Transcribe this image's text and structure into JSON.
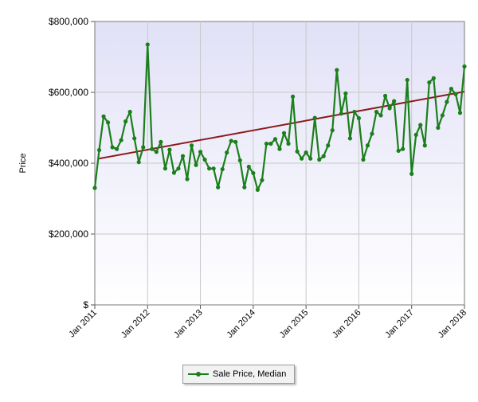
{
  "chart_data": {
    "type": "line",
    "title": "",
    "xlabel": "",
    "ylabel": "Price",
    "ylim": [
      0,
      800000
    ],
    "y_ticks": [
      "$",
      "$200,000",
      "$400,000",
      "$600,000",
      "$800,000"
    ],
    "y_tick_values": [
      0,
      200000,
      400000,
      600000,
      800000
    ],
    "x_ticks": [
      "Jan 2011",
      "Jan 2012",
      "Jan 2013",
      "Jan 2014",
      "Jan 2015",
      "Jan 2016",
      "Jan 2017",
      "Jan 2018"
    ],
    "x_tick_values": [
      0,
      12,
      24,
      36,
      48,
      60,
      72,
      84
    ],
    "x_range": [
      0,
      84
    ],
    "grid": true,
    "legend_position": "bottom-center",
    "colors": {
      "series": "#1b7f1b",
      "trend": "#8b1a1a",
      "plot_background_top": "#e1e1f7",
      "plot_background_bottom": "#ffffff",
      "grid": "#c8c8c8"
    },
    "series": [
      {
        "name": "Sale Price, Median",
        "x": [
          0,
          1,
          2,
          3,
          4,
          5,
          6,
          7,
          8,
          9,
          10,
          11,
          12,
          13,
          14,
          15,
          16,
          17,
          18,
          19,
          20,
          21,
          22,
          23,
          24,
          25,
          26,
          27,
          28,
          29,
          30,
          31,
          32,
          33,
          34,
          35,
          36,
          37,
          38,
          39,
          40,
          41,
          42,
          43,
          44,
          45,
          46,
          47,
          48,
          49,
          50,
          51,
          52,
          53,
          54,
          55,
          56,
          57,
          58,
          59,
          60,
          61,
          62,
          63,
          64,
          65,
          66,
          67,
          68,
          69,
          70,
          71,
          72,
          73,
          74,
          75,
          76,
          77,
          78,
          79,
          80,
          81,
          82,
          83,
          84
        ],
        "values": [
          330000,
          437000,
          532000,
          515000,
          445000,
          440000,
          465000,
          518000,
          545000,
          470000,
          403000,
          445000,
          735000,
          440000,
          432000,
          460000,
          385000,
          438000,
          373000,
          385000,
          420000,
          355000,
          450000,
          395000,
          432000,
          410000,
          385000,
          385000,
          332000,
          383000,
          430000,
          463000,
          460000,
          408000,
          332000,
          390000,
          372000,
          325000,
          352000,
          455000,
          455000,
          468000,
          440000,
          485000,
          455000,
          588000,
          433000,
          413000,
          430000,
          413000,
          528000,
          410000,
          420000,
          450000,
          493000,
          663000,
          540000,
          597000,
          470000,
          545000,
          527000,
          410000,
          450000,
          483000,
          545000,
          535000,
          590000,
          555000,
          575000,
          435000,
          440000,
          635000,
          370000,
          480000,
          508000,
          450000,
          628000,
          640000,
          500000,
          535000,
          573000,
          610000,
          595000,
          542000,
          673000
        ]
      }
    ],
    "trendline": {
      "x": [
        1,
        84
      ],
      "values": [
        413000,
        602000
      ]
    }
  }
}
